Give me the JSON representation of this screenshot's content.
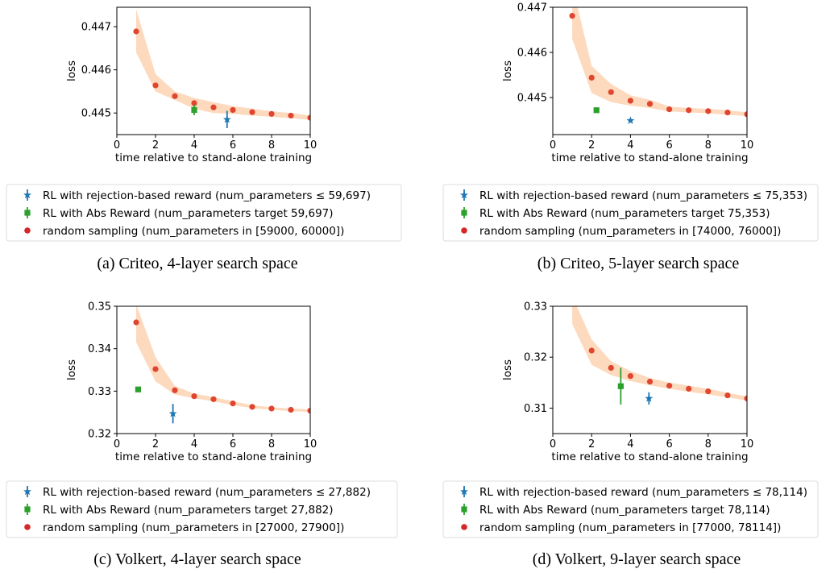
{
  "colors": {
    "rl_rejection": "#1f77b4",
    "rl_abs": "#2ca02c",
    "random": "#d62728",
    "band": "#fdd9bd",
    "random_dot": "#e0452f"
  },
  "shared": {
    "xlabel": "time relative to stand-alone training",
    "ylabel": "loss",
    "xticks": [
      "0",
      "2",
      "4",
      "6",
      "8",
      "10"
    ]
  },
  "chart_data": [
    {
      "id": "a",
      "type": "scatter",
      "caption": "(a)  Criteo, 4-layer search space",
      "xlim": [
        0,
        10
      ],
      "ylim": [
        0.4445,
        0.44745
      ],
      "yticks": [
        0.445,
        0.446,
        0.447
      ],
      "ytick_labels": [
        "0.445",
        "0.446",
        "0.447"
      ],
      "random_x": [
        1,
        2,
        3,
        4,
        5,
        6,
        7,
        8,
        9,
        10
      ],
      "random_y": [
        0.44689,
        0.44564,
        0.44539,
        0.44523,
        0.44513,
        0.44507,
        0.44502,
        0.44498,
        0.44494,
        0.44489
      ],
      "band_lower": [
        0.4464,
        0.4455,
        0.4453,
        0.4451,
        0.445,
        0.44498,
        0.44494,
        0.44491,
        0.44488,
        0.44484
      ],
      "band_upper": [
        0.4474,
        0.4459,
        0.4455,
        0.44535,
        0.44525,
        0.44516,
        0.4451,
        0.44504,
        0.445,
        0.44494
      ],
      "rl_abs": {
        "x": 4.0,
        "y": 0.44507,
        "err": 0.00012
      },
      "rl_rejection": {
        "x": 5.7,
        "y": 0.44485,
        "err": 0.0002
      },
      "legend": [
        "RL with rejection-based reward (num_parameters ≤ 59,697)",
        "RL with Abs Reward (num_parameters target 59,697)",
        "random sampling (num_parameters in [59000, 60000])"
      ]
    },
    {
      "id": "b",
      "type": "scatter",
      "caption": "(b)  Criteo, 5-layer search space",
      "xlim": [
        0,
        10
      ],
      "ylim": [
        0.44418,
        0.447
      ],
      "yticks": [
        0.445,
        0.446,
        0.447
      ],
      "ytick_labels": [
        "0.445",
        "0.446",
        "0.447"
      ],
      "random_x": [
        1,
        2,
        3,
        4,
        5,
        6,
        7,
        8,
        9,
        10
      ],
      "random_y": [
        0.44681,
        0.44544,
        0.44512,
        0.44493,
        0.44486,
        0.44474,
        0.44472,
        0.4447,
        0.44467,
        0.44463
      ],
      "band_lower": [
        0.4463,
        0.4451,
        0.4449,
        0.44482,
        0.44477,
        0.44469,
        0.44467,
        0.44465,
        0.44462,
        0.44459
      ],
      "band_upper": [
        0.4475,
        0.4457,
        0.4453,
        0.44505,
        0.44495,
        0.4448,
        0.44477,
        0.44475,
        0.44472,
        0.44467
      ],
      "rl_abs": {
        "x": 2.25,
        "y": 0.44472,
        "err": 4e-05
      },
      "rl_rejection": {
        "x": 4.0,
        "y": 0.44449,
        "err": 3e-05
      },
      "legend": [
        "RL with rejection-based reward (num_parameters ≤ 75,353)",
        "RL with Abs Reward (num_parameters target 75,353)",
        "random sampling (num_parameters in [74000, 76000])"
      ]
    },
    {
      "id": "c",
      "type": "scatter",
      "caption": "(c)  Volkert, 4-layer search space",
      "xlim": [
        0,
        10
      ],
      "ylim": [
        0.32,
        0.35
      ],
      "yticks": [
        0.32,
        0.33,
        0.34,
        0.35
      ],
      "ytick_labels": [
        "0.32",
        "0.33",
        "0.34",
        "0.35"
      ],
      "random_x": [
        1,
        2,
        3,
        4,
        5,
        6,
        7,
        8,
        9,
        10
      ],
      "random_y": [
        0.3462,
        0.3352,
        0.3302,
        0.3288,
        0.3281,
        0.3271,
        0.3263,
        0.3259,
        0.3256,
        0.3254
      ],
      "band_lower": [
        0.3415,
        0.3323,
        0.3292,
        0.3283,
        0.3276,
        0.3267,
        0.326,
        0.3256,
        0.3253,
        0.3251
      ],
      "band_upper": [
        0.3505,
        0.338,
        0.3312,
        0.3294,
        0.3286,
        0.3276,
        0.3267,
        0.3262,
        0.3259,
        0.3257
      ],
      "rl_abs": {
        "x": 1.1,
        "y": 0.3304,
        "err": 0.0003
      },
      "rl_rejection": {
        "x": 2.9,
        "y": 0.3247,
        "err": 0.0023
      },
      "legend": [
        "RL with rejection-based reward (num_parameters ≤ 27,882)",
        "RL with Abs Reward (num_parameters target 27,882)",
        "random sampling (num_parameters in [27000, 27900])"
      ]
    },
    {
      "id": "d",
      "type": "scatter",
      "caption": "(d)  Volkert, 9-layer search space",
      "xlim": [
        0,
        10
      ],
      "ylim": [
        0.305,
        0.33
      ],
      "yticks": [
        0.31,
        0.32,
        0.33
      ],
      "ytick_labels": [
        "0.31",
        "0.32",
        "0.33"
      ],
      "random_x": [
        2,
        3,
        4,
        5,
        6,
        7,
        8,
        9,
        10
      ],
      "random_y": [
        0.3213,
        0.3179,
        0.3163,
        0.3152,
        0.3144,
        0.3138,
        0.3133,
        0.3125,
        0.3119
      ],
      "band_lower": [
        0.3185,
        0.3165,
        0.3153,
        0.3145,
        0.3138,
        0.3132,
        0.3127,
        0.3121,
        0.3115
      ],
      "band_upper": [
        0.3235,
        0.3192,
        0.3173,
        0.3159,
        0.315,
        0.3144,
        0.3138,
        0.313,
        0.3123
      ],
      "band_head": {
        "x": [
          1.0,
          1.0
        ],
        "lower": 0.3265,
        "upper": 0.332
      },
      "rl_abs": {
        "x": 3.5,
        "y": 0.3143,
        "err": 0.0036
      },
      "rl_rejection": {
        "x": 4.95,
        "y": 0.3119,
        "err": 0.0012
      },
      "legend": [
        "RL with rejection-based reward (num_parameters ≤ 78,114)",
        "RL with Abs Reward (num_parameters target 78,114)",
        "random sampling (num_parameters in [77000, 78114])"
      ]
    }
  ]
}
